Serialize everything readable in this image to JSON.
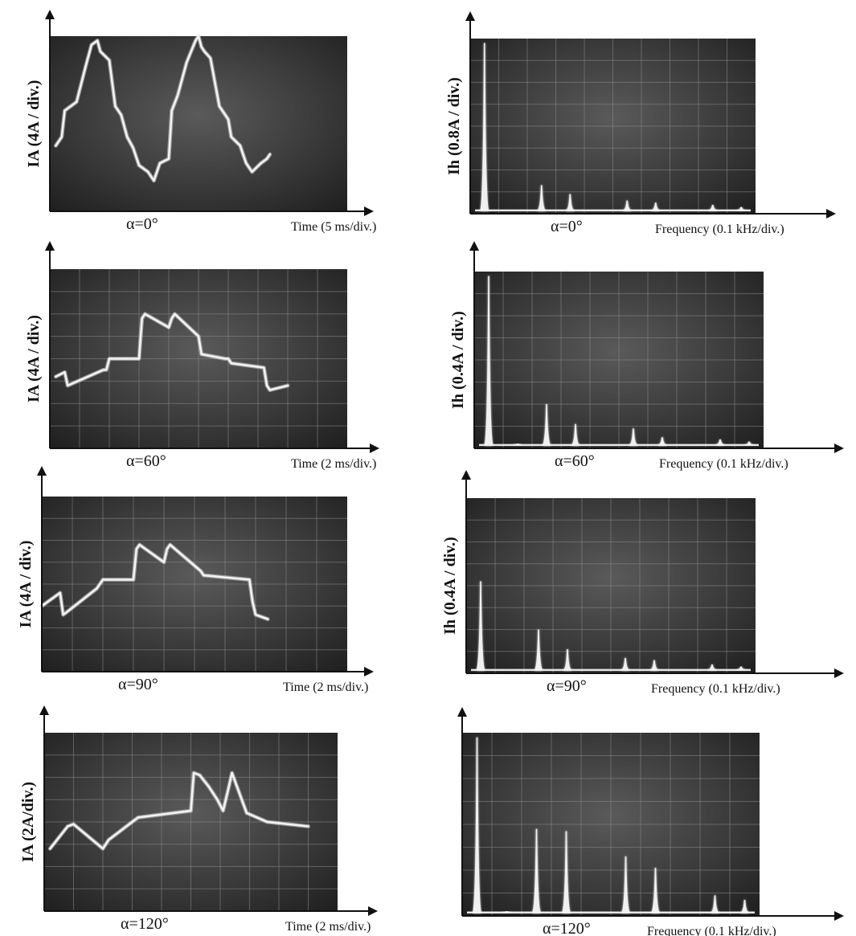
{
  "chart_data": [
    {
      "type": "line",
      "row": 0,
      "col": 0,
      "ylabel": "IA (4A / div.)",
      "xlabel": "Time (5 ms/div.)",
      "caption": "α=0°",
      "grid": false,
      "x": [
        0.2,
        0.4,
        0.5,
        0.9,
        1.2,
        1.4,
        1.6,
        1.7,
        2.0,
        2.2,
        2.4,
        2.6,
        2.8,
        3.0,
        3.3,
        3.5,
        3.7,
        4.0,
        4.1,
        4.3,
        4.6,
        4.9,
        5.0,
        5.1,
        5.2,
        5.4,
        5.7,
        6.0,
        6.1,
        6.4,
        6.6,
        6.8,
        7.1,
        7.3,
        7.4
      ],
      "y": [
        3.0,
        3.4,
        4.6,
        5.0,
        6.6,
        7.6,
        7.8,
        7.3,
        6.9,
        4.8,
        4.4,
        3.4,
        2.9,
        2.1,
        1.8,
        1.4,
        2.2,
        2.4,
        4.6,
        5.3,
        6.8,
        7.8,
        8.0,
        7.5,
        7.3,
        7.0,
        4.8,
        4.2,
        3.4,
        3.0,
        2.2,
        1.8,
        2.2,
        2.4,
        2.6
      ]
    },
    {
      "type": "bar",
      "row": 0,
      "col": 1,
      "ylabel": "Ih (0.8A / div.)",
      "xlabel": "Frequency (0.1 kHz/div.)",
      "caption": "α=0°",
      "grid": true,
      "x": [
        0.5,
        2.5,
        3.5,
        5.5,
        6.5,
        8.5,
        9.5
      ],
      "values": [
        7.8,
        1.3,
        0.9,
        0.6,
        0.5,
        0.4,
        0.3
      ]
    },
    {
      "type": "line",
      "row": 1,
      "col": 0,
      "ylabel": "IA (4A / div.)",
      "xlabel": "Time (2 ms/div.)",
      "caption": "α=60°",
      "grid": true,
      "x": [
        0.2,
        0.5,
        0.6,
        1.8,
        1.9,
        2.0,
        3.0,
        3.1,
        3.2,
        4.0,
        4.1,
        4.2,
        5.0,
        5.1,
        5.9,
        6.0,
        6.1,
        7.2,
        7.3,
        7.4,
        8.0
      ],
      "y": [
        3.2,
        3.4,
        2.8,
        3.5,
        3.5,
        4.0,
        4.0,
        5.8,
        6.0,
        5.4,
        5.8,
        6.0,
        5.0,
        4.2,
        4.0,
        4.0,
        3.8,
        3.6,
        2.8,
        2.6,
        2.8
      ]
    },
    {
      "type": "bar",
      "row": 1,
      "col": 1,
      "ylabel": "Ih (0.4A / div.)",
      "xlabel": "Frequency (0.1 kHz/div.)",
      "caption": "α=60°",
      "grid": true,
      "x": [
        0.5,
        1.5,
        2.5,
        3.5,
        5.5,
        6.5,
        8.5,
        9.5
      ],
      "values": [
        7.8,
        0.2,
        2.0,
        1.1,
        0.9,
        0.5,
        0.4,
        0.3
      ]
    },
    {
      "type": "line",
      "row": 2,
      "col": 0,
      "ylabel": "IA (4A / div.)",
      "xlabel": "Time (2 ms/div.)",
      "caption": "α=90°",
      "grid": true,
      "x": [
        0.0,
        0.6,
        0.7,
        0.8,
        1.8,
        1.9,
        2.0,
        3.0,
        3.1,
        3.2,
        4.0,
        4.1,
        4.2,
        5.2,
        5.3,
        6.8,
        6.9,
        7.0,
        7.4
      ],
      "y": [
        3.0,
        3.6,
        2.6,
        2.7,
        3.8,
        4.0,
        4.2,
        4.2,
        5.6,
        5.8,
        5.0,
        5.6,
        5.8,
        4.6,
        4.4,
        4.2,
        3.2,
        2.6,
        2.4
      ]
    },
    {
      "type": "bar",
      "row": 2,
      "col": 1,
      "ylabel": "Ih (0.4A / div.)",
      "xlabel": "Frequency (0.1 kHz/div.)",
      "caption": "α=90°",
      "grid": true,
      "x": [
        0.5,
        2.5,
        3.5,
        5.5,
        6.5,
        8.5,
        9.5
      ],
      "values": [
        4.2,
        2.0,
        1.1,
        0.7,
        0.6,
        0.4,
        0.3
      ]
    },
    {
      "type": "line",
      "row": 3,
      "col": 0,
      "ylabel": "IA (2A/div.)",
      "xlabel": "Time (2 ms/div.)",
      "caption": "α=120°",
      "grid": true,
      "x": [
        0.2,
        0.8,
        1.0,
        2.0,
        2.2,
        3.0,
        3.2,
        5.0,
        5.1,
        5.3,
        5.6,
        5.9,
        6.1,
        6.3,
        6.4,
        6.9,
        7.6,
        9.0
      ],
      "y": [
        2.8,
        3.8,
        3.9,
        2.8,
        3.2,
        4.0,
        4.2,
        4.5,
        6.2,
        6.1,
        5.6,
        5.0,
        4.5,
        5.6,
        6.2,
        4.4,
        4.0,
        3.8
      ]
    },
    {
      "type": "bar",
      "row": 3,
      "col": 1,
      "ylabel": "",
      "xlabel": "Frequency (0.1 kHz/div.)",
      "caption": "α=120°",
      "grid": true,
      "x": [
        0.5,
        1.5,
        2.5,
        3.5,
        5.5,
        6.5,
        8.5,
        9.5
      ],
      "values": [
        7.8,
        0.2,
        3.8,
        3.7,
        2.6,
        2.1,
        0.9,
        0.7
      ]
    }
  ]
}
